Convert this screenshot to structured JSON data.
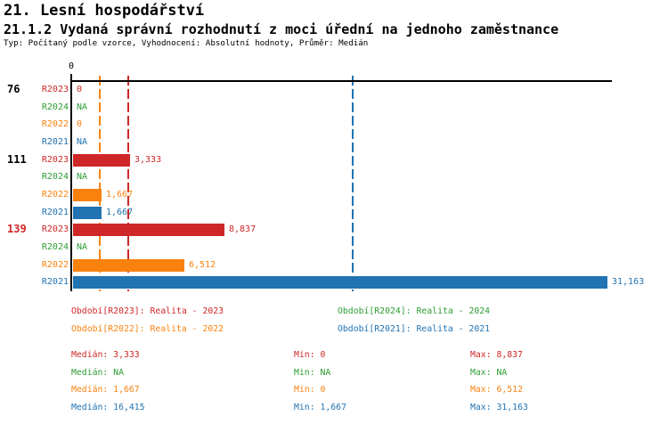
{
  "title": "21. Lesní hospodářství",
  "subtitle": "21.1.2 Vydaná správní rozhodnutí z moci úřední na jednoho zaměstnance",
  "type_line": "Typ: Počítaný podle vzorce, Vyhodnocení: Absolutní hodnoty, Průměr: Medián",
  "colors": {
    "r2023": "#cf2727",
    "r2024": "#2e9d33",
    "r2022": "#f9820f",
    "r2021": "#2173b2",
    "axis": "#000000",
    "group_id_default": "#000000"
  },
  "axis": {
    "zero_label": "0"
  },
  "chart_data": {
    "type": "bar",
    "orientation": "horizontal",
    "x_origin": 0,
    "x_max": 31.163,
    "grid": "off",
    "series_order": [
      "R2023",
      "R2024",
      "R2022",
      "R2021"
    ],
    "groups": [
      {
        "id": "76",
        "id_color": "#000000",
        "rows": [
          {
            "label": "R2023",
            "series": "r2023",
            "value": 0,
            "display": "0"
          },
          {
            "label": "R2024",
            "series": "r2024",
            "value": null,
            "display": "NA"
          },
          {
            "label": "R2022",
            "series": "r2022",
            "value": 0,
            "display": "0"
          },
          {
            "label": "R2021",
            "series": "r2021",
            "value": null,
            "display": "NA"
          }
        ]
      },
      {
        "id": "111",
        "id_color": "#000000",
        "rows": [
          {
            "label": "R2023",
            "series": "r2023",
            "value": 3.333,
            "display": "3,333"
          },
          {
            "label": "R2024",
            "series": "r2024",
            "value": null,
            "display": "NA"
          },
          {
            "label": "R2022",
            "series": "r2022",
            "value": 1.667,
            "display": "1,667"
          },
          {
            "label": "R2021",
            "series": "r2021",
            "value": 1.667,
            "display": "1,667"
          }
        ]
      },
      {
        "id": "139",
        "id_color": "#cf2727",
        "rows": [
          {
            "label": "R2023",
            "series": "r2023",
            "value": 8.837,
            "display": "8,837"
          },
          {
            "label": "R2024",
            "series": "r2024",
            "value": null,
            "display": "NA"
          },
          {
            "label": "R2022",
            "series": "r2022",
            "value": 6.512,
            "display": "6,512"
          },
          {
            "label": "R2021",
            "series": "r2021",
            "value": 31.163,
            "display": "31,163"
          }
        ]
      }
    ],
    "median_lines": [
      {
        "series": "r2022",
        "value": 1.667
      },
      {
        "series": "r2023",
        "value": 3.333
      },
      {
        "series": "r2021",
        "value": 16.415
      }
    ]
  },
  "legend": [
    {
      "series": "r2023",
      "label": "Období[R2023]: Realita - 2023"
    },
    {
      "series": "r2024",
      "label": "Období[R2024]: Realita - 2024"
    },
    {
      "series": "r2022",
      "label": "Období[R2022]: Realita - 2022"
    },
    {
      "series": "r2021",
      "label": "Období[R2021]: Realita - 2021"
    }
  ],
  "stats": [
    {
      "series": "r2023",
      "median": "Medián: 3,333",
      "min": "Min: 0",
      "max": "Max: 8,837"
    },
    {
      "series": "r2024",
      "median": "Medián: NA",
      "min": "Min: NA",
      "max": "Max: NA"
    },
    {
      "series": "r2022",
      "median": "Medián: 1,667",
      "min": "Min: 0",
      "max": "Max: 6,512"
    },
    {
      "series": "r2021",
      "median": "Medián: 16,415",
      "min": "Min: 1,667",
      "max": "Max: 31,163"
    }
  ]
}
